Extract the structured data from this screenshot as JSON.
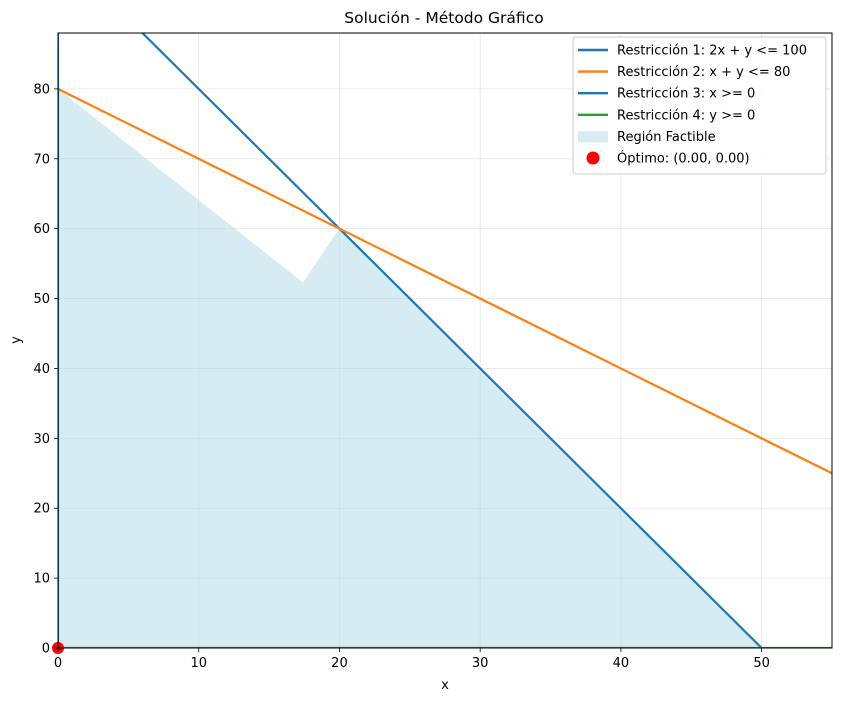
{
  "chart_data": {
    "type": "line",
    "title": "Solución - Método Gráfico",
    "xlabel": "x",
    "ylabel": "y",
    "xlim": [
      0,
      55
    ],
    "ylim": [
      0,
      88
    ],
    "xticks": [
      0,
      10,
      20,
      30,
      40,
      50
    ],
    "yticks": [
      0,
      10,
      20,
      30,
      40,
      50,
      60,
      70,
      80
    ],
    "grid": true,
    "legend_position": "top-right",
    "series": [
      {
        "name": "Restricción 1: 2x + y <= 100",
        "color": "#1f77b4",
        "points": [
          [
            0,
            100
          ],
          [
            50,
            0
          ]
        ]
      },
      {
        "name": "Restricción 2: x + y <= 80",
        "color": "#ff7f0e",
        "points": [
          [
            0,
            80
          ],
          [
            55,
            25
          ]
        ]
      },
      {
        "name": "Restricción 3: x >= 0",
        "color": "#1f77b4",
        "points": [
          [
            0,
            0
          ],
          [
            0,
            88
          ]
        ]
      },
      {
        "name": "Restricción 4: y >= 0",
        "color": "#2ca02c",
        "points": [
          [
            0,
            0
          ],
          [
            55,
            0
          ]
        ]
      }
    ],
    "feasible_region": {
      "name": "Región Factible",
      "color": "#add8e6",
      "polygon": [
        [
          0,
          0
        ],
        [
          0,
          80
        ],
        [
          17.4,
          52.3
        ],
        [
          20,
          60
        ],
        [
          50,
          0
        ]
      ]
    },
    "optimum": {
      "label": "Óptimo: (0.00, 0.00)",
      "color": "#ff0000",
      "point": [
        0,
        0
      ]
    }
  }
}
